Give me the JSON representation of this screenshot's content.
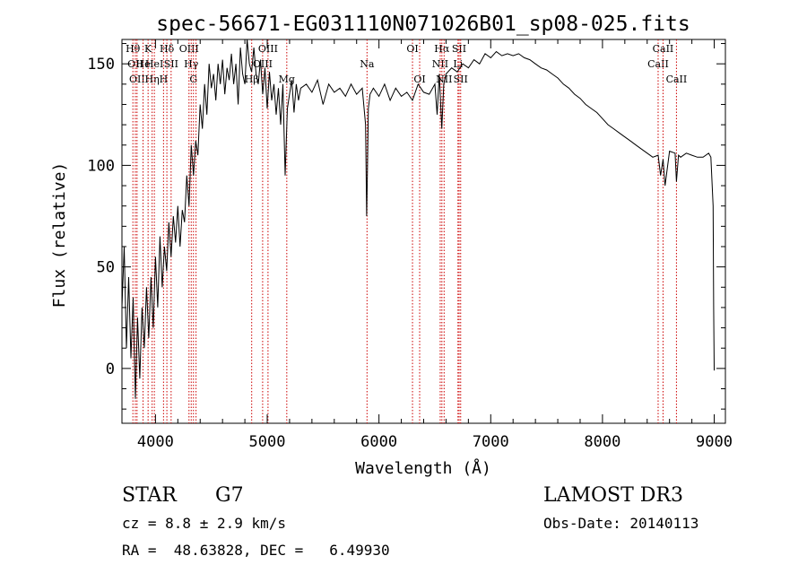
{
  "chart_data": {
    "type": "line",
    "title": "spec-56671-EG031110N071026B01_sp08-025.fits",
    "xlabel": "Wavelength (Å)",
    "ylabel": "Flux (relative)",
    "xlim": [
      3700,
      9100
    ],
    "ylim": [
      -27,
      162
    ],
    "xticks": [
      4000,
      5000,
      6000,
      7000,
      8000,
      9000
    ],
    "yticks": [
      0,
      50,
      100,
      150
    ],
    "grid": false,
    "line_color": "#000000",
    "marker_color": "#cc0000",
    "series": [
      {
        "name": "flux",
        "x": [
          3700,
          3720,
          3740,
          3760,
          3780,
          3800,
          3820,
          3840,
          3860,
          3880,
          3900,
          3920,
          3940,
          3960,
          3980,
          4000,
          4020,
          4040,
          4060,
          4080,
          4100,
          4120,
          4140,
          4160,
          4180,
          4200,
          4220,
          4240,
          4260,
          4280,
          4300,
          4320,
          4340,
          4360,
          4380,
          4400,
          4420,
          4440,
          4460,
          4480,
          4500,
          4520,
          4540,
          4560,
          4580,
          4600,
          4620,
          4640,
          4660,
          4680,
          4700,
          4720,
          4740,
          4760,
          4780,
          4800,
          4820,
          4840,
          4860,
          4880,
          4900,
          4920,
          4940,
          4960,
          4980,
          5000,
          5020,
          5040,
          5060,
          5080,
          5100,
          5120,
          5140,
          5160,
          5180,
          5200,
          5220,
          5240,
          5260,
          5280,
          5300,
          5350,
          5400,
          5450,
          5500,
          5550,
          5600,
          5650,
          5700,
          5750,
          5800,
          5850,
          5880,
          5890,
          5896,
          5905,
          5920,
          5950,
          6000,
          6050,
          6100,
          6150,
          6200,
          6250,
          6300,
          6350,
          6400,
          6450,
          6500,
          6520,
          6540,
          6562,
          6580,
          6600,
          6650,
          6700,
          6750,
          6800,
          6850,
          6900,
          6950,
          7000,
          7050,
          7100,
          7150,
          7200,
          7250,
          7300,
          7350,
          7400,
          7450,
          7500,
          7550,
          7600,
          7650,
          7700,
          7750,
          7800,
          7850,
          7900,
          7950,
          8000,
          8050,
          8100,
          8150,
          8200,
          8250,
          8300,
          8350,
          8400,
          8450,
          8498,
          8520,
          8542,
          8560,
          8600,
          8650,
          8662,
          8680,
          8700,
          8750,
          8800,
          8850,
          8900,
          8950,
          8970,
          8990,
          8995,
          9000
        ],
        "y": [
          30,
          60,
          10,
          45,
          5,
          35,
          -15,
          25,
          -5,
          30,
          10,
          40,
          15,
          45,
          20,
          55,
          30,
          65,
          40,
          60,
          48,
          72,
          55,
          75,
          62,
          80,
          60,
          78,
          72,
          95,
          80,
          110,
          95,
          112,
          105,
          130,
          118,
          140,
          125,
          150,
          138,
          145,
          132,
          150,
          140,
          152,
          135,
          148,
          142,
          155,
          140,
          150,
          130,
          158,
          145,
          140,
          162,
          150,
          146,
          158,
          145,
          140,
          152,
          135,
          148,
          128,
          146,
          132,
          140,
          125,
          138,
          120,
          140,
          95,
          128,
          135,
          142,
          126,
          140,
          132,
          138,
          140,
          136,
          142,
          130,
          140,
          136,
          138,
          134,
          140,
          135,
          138,
          120,
          75,
          95,
          128,
          135,
          138,
          134,
          140,
          132,
          138,
          134,
          136,
          132,
          140,
          136,
          135,
          140,
          125,
          145,
          118,
          140,
          145,
          148,
          146,
          150,
          148,
          152,
          150,
          155,
          153,
          156,
          154,
          155,
          154,
          155,
          153,
          152,
          150,
          148,
          147,
          145,
          143,
          140,
          138,
          135,
          133,
          130,
          128,
          126,
          123,
          120,
          118,
          116,
          114,
          112,
          110,
          108,
          106,
          104,
          105,
          95,
          103,
          90,
          107,
          106,
          92,
          105,
          104,
          106,
          105,
          104,
          104,
          106,
          104,
          80,
          30,
          -1
        ]
      }
    ],
    "line_markers": [
      {
        "wl": 3798,
        "label": "Hθ",
        "row": 1
      },
      {
        "wl": 3820,
        "label": "OII",
        "row": 2
      },
      {
        "wl": 3835,
        "label": "OII",
        "row": 3
      },
      {
        "wl": 3889,
        "label": "He",
        "row": 2
      },
      {
        "wl": 3934,
        "label": "K",
        "row": 1
      },
      {
        "wl": 3970,
        "label": "Hη",
        "row": 3
      },
      {
        "wl": 3990,
        "label": "HeI",
        "row": 2
      },
      {
        "wl": 4072,
        "label": "H",
        "row": 3
      },
      {
        "wl": 4102,
        "label": "Hδ",
        "row": 1
      },
      {
        "wl": 4140,
        "label": "SII",
        "row": 2
      },
      {
        "wl": 4300,
        "label": "OIII",
        "row": 1
      },
      {
        "wl": 4320,
        "label": "Hγ",
        "row": 2
      },
      {
        "wl": 4340,
        "label": "G",
        "row": 3
      },
      {
        "wl": 4363,
        "label": "",
        "row": 0
      },
      {
        "wl": 4861,
        "label": "Hβ",
        "row": 3
      },
      {
        "wl": 4959,
        "label": "OIII",
        "row": 2
      },
      {
        "wl": 5007,
        "label": "OIII",
        "row": 1
      },
      {
        "wl": 5175,
        "label": "Mg",
        "row": 3
      },
      {
        "wl": 5893,
        "label": "Na",
        "row": 2
      },
      {
        "wl": 6300,
        "label": "OI",
        "row": 1
      },
      {
        "wl": 6364,
        "label": "OI",
        "row": 3
      },
      {
        "wl": 6548,
        "label": "NII",
        "row": 2
      },
      {
        "wl": 6563,
        "label": "Hα",
        "row": 1
      },
      {
        "wl": 6583,
        "label": "NII",
        "row": 3
      },
      {
        "wl": 6707,
        "label": "Li",
        "row": 2
      },
      {
        "wl": 6717,
        "label": "SII",
        "row": 1
      },
      {
        "wl": 6731,
        "label": "SII",
        "row": 3
      },
      {
        "wl": 8498,
        "label": "CaII",
        "row": 2
      },
      {
        "wl": 8542,
        "label": "CaII",
        "row": 1
      },
      {
        "wl": 8662,
        "label": "CaII",
        "row": 3
      }
    ]
  },
  "info": {
    "object_class": "STAR",
    "subclass": "G7",
    "survey": "LAMOST DR3",
    "redshift": "cz = 8.8 ± 2.9 km/s",
    "obs_date": "Obs-Date: 20140113",
    "coords": "RA =  48.63828, DEC =   6.49930"
  }
}
